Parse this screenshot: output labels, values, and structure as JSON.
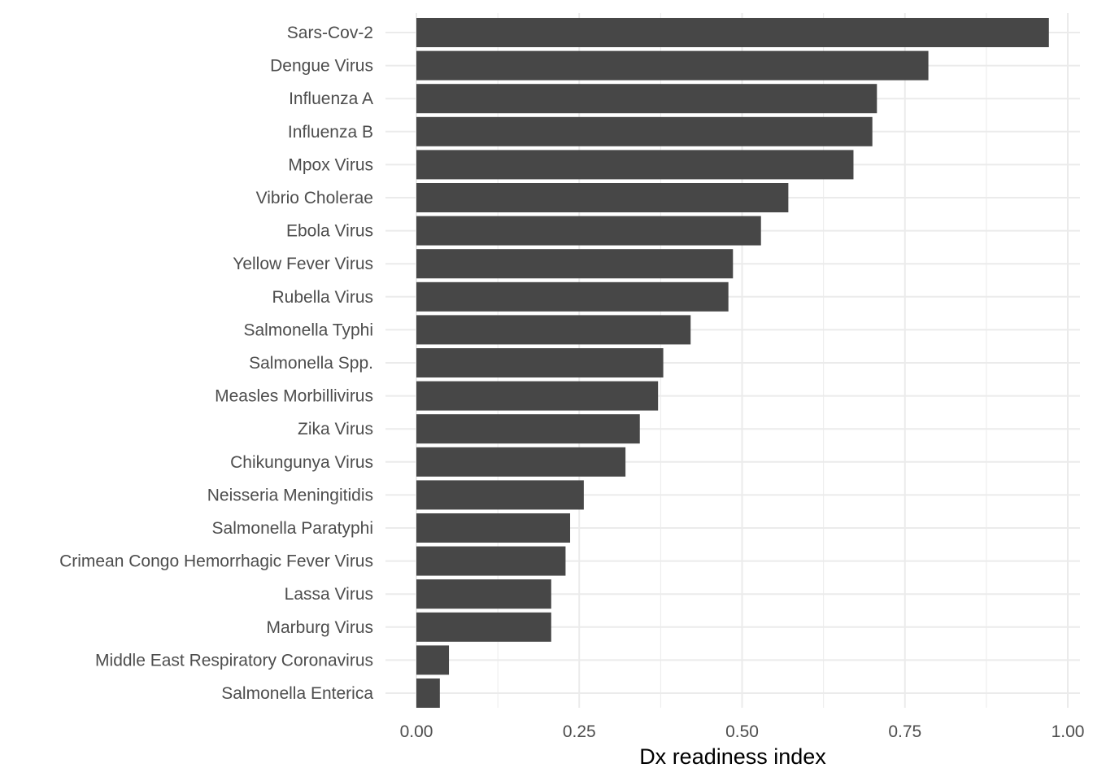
{
  "chart_data": {
    "type": "bar",
    "orientation": "horizontal",
    "xlabel": "Dx readiness index",
    "ylabel": "",
    "xlim": [
      0,
      1
    ],
    "x_ticks": [
      "0.00",
      "0.25",
      "0.50",
      "0.75",
      "1.00"
    ],
    "grid": true,
    "bar_color": "#474747",
    "gridline_color": "#ebebeb",
    "categories": [
      "Sars-Cov-2",
      "Dengue Virus",
      "Influenza A",
      "Influenza B",
      "Mpox Virus",
      "Vibrio Cholerae",
      "Ebola Virus",
      "Yellow Fever Virus",
      "Rubella Virus",
      "Salmonella Typhi",
      "Salmonella Spp.",
      "Measles Morbillivirus",
      "Zika Virus",
      "Chikungunya Virus",
      "Neisseria Meningitidis",
      "Salmonella Paratyphi",
      "Crimean Congo Hemorrhagic Fever Virus",
      "Lassa Virus",
      "Marburg Virus",
      "Middle East Respiratory Coronavirus",
      "Salmonella Enterica"
    ],
    "values": [
      0.971,
      0.786,
      0.707,
      0.7,
      0.671,
      0.571,
      0.529,
      0.486,
      0.479,
      0.421,
      0.379,
      0.371,
      0.343,
      0.321,
      0.257,
      0.236,
      0.229,
      0.207,
      0.207,
      0.05,
      0.036
    ]
  }
}
